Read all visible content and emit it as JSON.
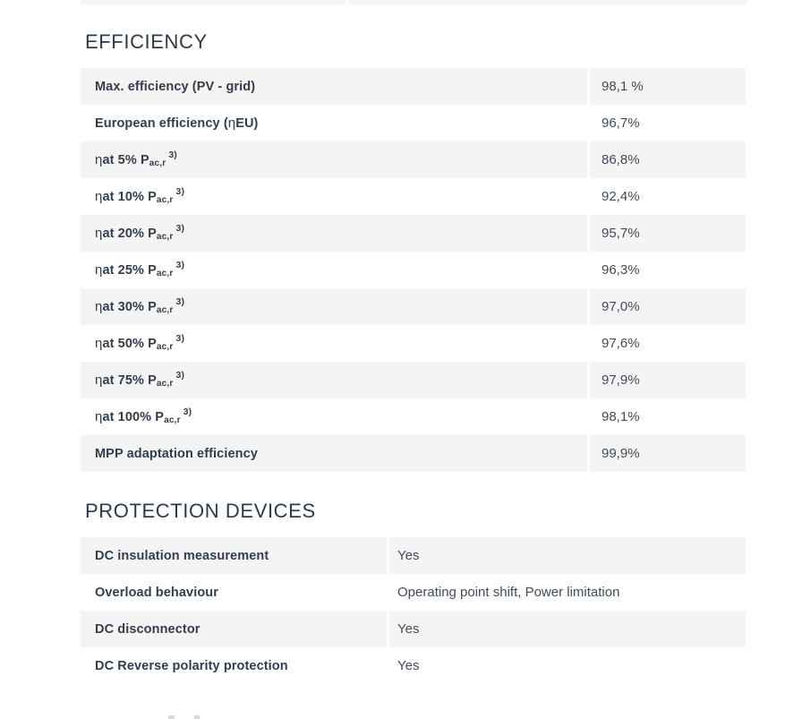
{
  "colors": {
    "row_background_gray": "#f4f4f4",
    "heading_text": "#2f3a49",
    "label_text": "#333e4c",
    "value_text": "#424c5a"
  },
  "efficiency": {
    "heading": "EFFICIENCY",
    "rows": [
      {
        "main": "Max. efficiency (PV - grid)",
        "value": "98,1 %"
      },
      {
        "main": "European efficiency (",
        "eta": "η",
        "main2": "EU)",
        "value": "96,7%"
      },
      {
        "eta": "η",
        "main": "at 5% P",
        "sub": "ac,r",
        "sup": "3)",
        "value": "86,8%"
      },
      {
        "eta": "η",
        "main": "at 10% P",
        "sub": "ac,r",
        "sup": "3)",
        "value": "92,4%"
      },
      {
        "eta": "η",
        "main": "at 20% P",
        "sub": "ac,r",
        "sup": "3)",
        "value": "95,7%"
      },
      {
        "eta": "η",
        "main": "at 25% P",
        "sub": "ac,r",
        "sup": "3)",
        "value": "96,3%"
      },
      {
        "eta": "η",
        "main": "at 30% P",
        "sub": "ac,r",
        "sup": "3)",
        "value": "97,0%"
      },
      {
        "eta": "η",
        "main": "at 50% P",
        "sub": "ac,r",
        "sup": "3)",
        "value": "97,6%"
      },
      {
        "eta": "η",
        "main": "at 75% P",
        "sub": "ac,r",
        "sup": "3)",
        "value": "97,9%"
      },
      {
        "eta": "η",
        "main": "at 100% P",
        "sub": "ac,r",
        "sup": "3)",
        "value": "98,1%"
      },
      {
        "main": "MPP adaptation efficiency",
        "value": "99,9%"
      }
    ]
  },
  "protection": {
    "heading": "PROTECTION DEVICES",
    "rows": [
      {
        "label": "DC insulation measurement",
        "value": "Yes"
      },
      {
        "label": "Overload behaviour",
        "value": "Operating point shift, Power limitation"
      },
      {
        "label": "DC disconnector",
        "value": "Yes"
      },
      {
        "label": "DC Reverse polarity protection",
        "value": "Yes"
      }
    ]
  }
}
